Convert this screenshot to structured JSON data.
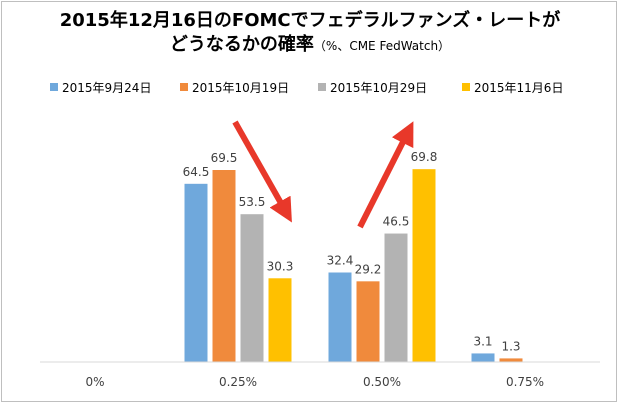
{
  "chart_data": {
    "type": "bar",
    "title": "2015年12月16日のFOMCでフェデラルファンズ・レートが",
    "title_line2": "どうなるかの確率",
    "subtitle": "（%、CME FedWatch）",
    "categories": [
      "0%",
      "0.25%",
      "0.50%",
      "0.75%"
    ],
    "series": [
      {
        "name": "2015年9月24日",
        "values": [
          null,
          64.5,
          32.4,
          3.1
        ],
        "labels": [
          "",
          "64.5",
          "32.4",
          "3.1"
        ],
        "color": "#6fa8dc"
      },
      {
        "name": "2015年10月19日",
        "values": [
          null,
          69.5,
          29.2,
          1.3
        ],
        "labels": [
          "",
          "69.5",
          "29.2",
          "1.3"
        ],
        "color": "#f08a3c"
      },
      {
        "name": "2015年10月29日",
        "values": [
          null,
          53.5,
          46.5,
          null
        ],
        "labels": [
          "",
          "53.5",
          "46.5",
          ""
        ],
        "color": "#b3b3b3"
      },
      {
        "name": "2015年11月6日",
        "values": [
          null,
          30.3,
          69.8,
          null
        ],
        "labels": [
          "",
          "30.3",
          "69.8",
          ""
        ],
        "color": "#ffc000"
      }
    ],
    "ylim": [
      0,
      100
    ],
    "legend": "top",
    "grid": false,
    "annotations": [
      {
        "type": "arrow",
        "direction": "down",
        "near": "0.25%",
        "color": "#e8382a"
      },
      {
        "type": "arrow",
        "direction": "up",
        "near": "0.50%",
        "color": "#e8382a"
      }
    ]
  }
}
